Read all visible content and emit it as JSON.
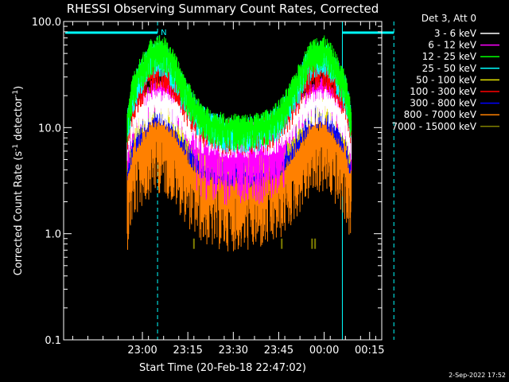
{
  "chart_data": {
    "type": "line",
    "title": "RHESSI Observing Summary Count Rates, Corrected",
    "xlabel": "Start Time (20-Feb-18 22:47:02)",
    "ylabel_main": "Corrected Count Rate (s",
    "ylabel_sup1": "-1",
    "ylabel_mid": " detector",
    "ylabel_sup2": "-1",
    "ylabel_end": ")",
    "y_scale": "log",
    "ylim": [
      0.1,
      100.0
    ],
    "xlim_minutes": [
      -13,
      92
    ],
    "y_ticks": [
      {
        "value": 100.0,
        "label": "100.0"
      },
      {
        "value": 10.0,
        "label": "10.0"
      },
      {
        "value": 1.0,
        "label": "1.0"
      },
      {
        "value": 0.1,
        "label": "0.1"
      }
    ],
    "x_ticks": [
      {
        "minute": 13,
        "label": "23:00"
      },
      {
        "minute": 28,
        "label": "23:15"
      },
      {
        "minute": 43,
        "label": "23:30"
      },
      {
        "minute": 58,
        "label": "23:45"
      },
      {
        "minute": 73,
        "label": "00:00"
      },
      {
        "minute": 88,
        "label": "00:15"
      }
    ],
    "legend_header": "Det 3, Att 0",
    "legend_position": "top-right",
    "night_marker": "N",
    "night_interval_minutes": [
      -13,
      18
    ],
    "day_interval_minutes": [
      79,
      96
    ],
    "data_interval_minutes": [
      8,
      82
    ],
    "series": [
      {
        "name": "3 - 6 keV",
        "color": "#ffffff",
        "edge": 14,
        "trough": 8.5
      },
      {
        "name": "6 - 12 keV",
        "color": "#ff00ff",
        "edge": 18,
        "trough": 6.0
      },
      {
        "name": "12 - 25 keV",
        "color": "#00ff00",
        "edge": 45,
        "trough": 10.0
      },
      {
        "name": "25 - 50 keV",
        "color": "#00ffff",
        "edge": 40,
        "trough": 9.5
      },
      {
        "name": "50 - 100 keV",
        "color": "#e6e600",
        "edge": 16,
        "trough": 5.5
      },
      {
        "name": "100 - 300 keV",
        "color": "#ff0000",
        "edge": 30,
        "trough": 9.0
      },
      {
        "name": "300 - 800 keV",
        "color": "#0000ff",
        "edge": 13,
        "trough": 4.5
      },
      {
        "name": "800 - 7000 keV",
        "color": "#ff8000",
        "edge": 7,
        "trough": 2.5
      },
      {
        "name": "7000 - 15000 keV",
        "color": "#808000",
        "edge": 0.8,
        "trough": 0.8
      }
    ],
    "footer_date": "2-Sep-2022 17:52"
  }
}
